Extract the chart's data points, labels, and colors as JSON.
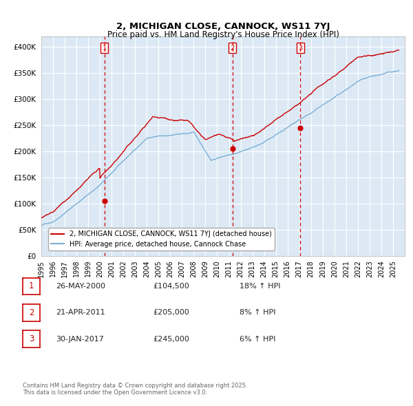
{
  "title": "2, MICHIGAN CLOSE, CANNOCK, WS11 7YJ",
  "subtitle": "Price paid vs. HM Land Registry's House Price Index (HPI)",
  "legend_line1": "2, MICHIGAN CLOSE, CANNOCK, WS11 7YJ (detached house)",
  "legend_line2": "HPI: Average price, detached house, Cannock Chase",
  "sale1_label": "1",
  "sale1_date": "26-MAY-2000",
  "sale1_price": "£104,500",
  "sale1_hpi": "18% ↑ HPI",
  "sale2_label": "2",
  "sale2_date": "21-APR-2011",
  "sale2_price": "£205,000",
  "sale2_hpi": "8% ↑ HPI",
  "sale3_label": "3",
  "sale3_date": "30-JAN-2017",
  "sale3_price": "£245,000",
  "sale3_hpi": "6% ↑ HPI",
  "footnote": "Contains HM Land Registry data © Crown copyright and database right 2025.\nThis data is licensed under the Open Government Licence v3.0.",
  "background_color": "#dce9f5",
  "grid_color": "#ffffff",
  "red_line_color": "#cc0000",
  "blue_line_color": "#7bafd4",
  "ylim": [
    0,
    420000
  ],
  "yticks": [
    0,
    50000,
    100000,
    150000,
    200000,
    250000,
    300000,
    350000,
    400000
  ],
  "sale1_x": 2000.4,
  "sale1_y": 104500,
  "sale2_x": 2011.3,
  "sale2_y": 205000,
  "sale3_x": 2017.08,
  "sale3_y": 245000,
  "xmin": 1995,
  "xmax": 2026
}
